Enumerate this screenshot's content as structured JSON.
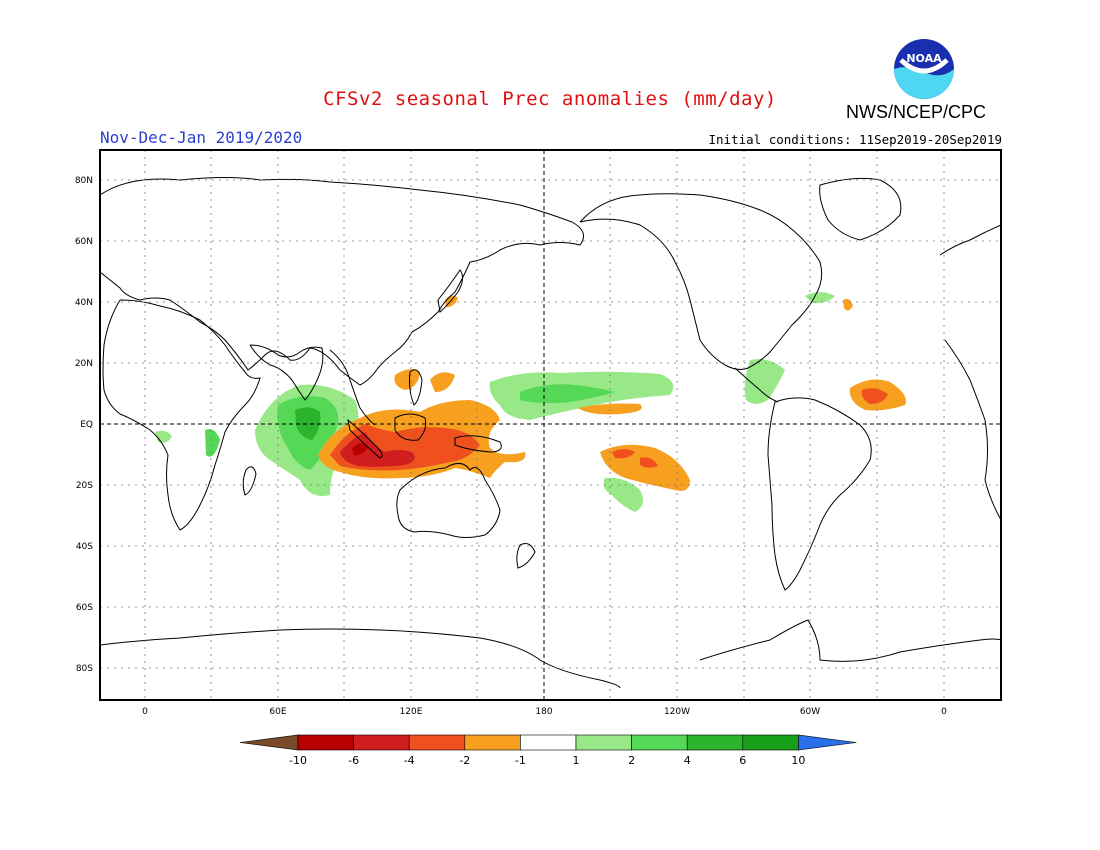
{
  "header": {
    "title": "CFSv2 seasonal Prec anomalies (mm/day)",
    "period": "Nov-Dec-Jan 2019/2020",
    "initial_conditions": "Initial conditions: 11Sep2019-20Sep2019",
    "organization": "NWS/NCEP/CPC",
    "logo_text": "NOAA"
  },
  "axes": {
    "lat_labels": [
      "80N",
      "60N",
      "40N",
      "20N",
      "EQ",
      "20S",
      "40S",
      "60S",
      "80S"
    ],
    "lon_labels": [
      "0",
      "60E",
      "120E",
      "180",
      "120W",
      "60W",
      "0"
    ]
  },
  "colorbar": {
    "labels": [
      "-10",
      "-6",
      "-4",
      "-2",
      "-1",
      "1",
      "2",
      "4",
      "6",
      "10"
    ],
    "colors": [
      "#7a4a2a",
      "#b80000",
      "#d01e1e",
      "#f0501e",
      "#f7a020",
      "#ffffff",
      "#98e888",
      "#55d855",
      "#2db42d",
      "#17a017",
      "#2a6ee8"
    ]
  }
}
